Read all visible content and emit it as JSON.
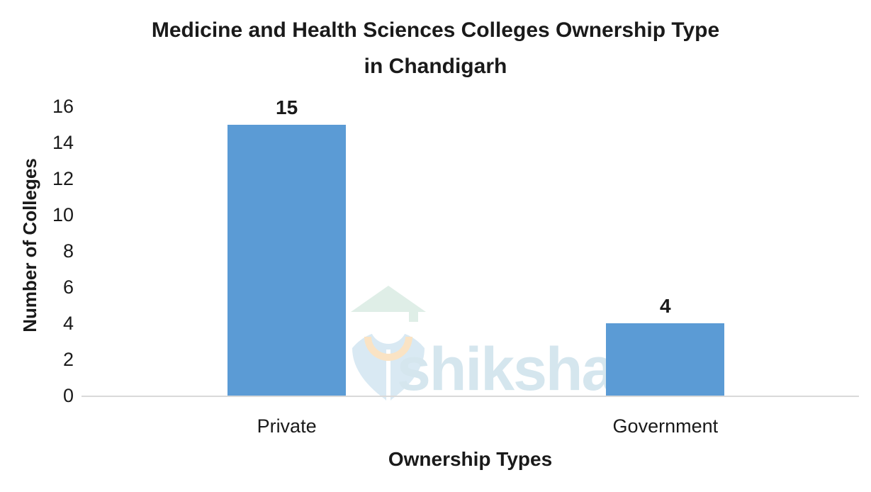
{
  "chart": {
    "title_line1": "Medicine and Health Sciences Colleges Ownership Type",
    "title_line2": "in Chandigarh",
    "ylabel": "Number of Colleges",
    "xlabel": "Ownership Types"
  },
  "watermark": {
    "text": "shiksha"
  },
  "colors": {
    "bar": "#5B9BD5",
    "axis_line": "#D9D9D9",
    "text": "#1A1A1A",
    "watermark_text": "#D5E6EE",
    "watermark_cap": "#DFEEE7",
    "watermark_body": "#D9E9F3",
    "watermark_collar": "#FAE3C4"
  },
  "chart_data": {
    "type": "bar",
    "title": "Medicine and Health Sciences Colleges Ownership Type in Chandigarh",
    "categories": [
      "Private",
      "Government"
    ],
    "values": [
      15,
      4
    ],
    "data_labels": [
      "15",
      "4"
    ],
    "xlabel": "Ownership Types",
    "ylabel": "Number of Colleges",
    "ylim": [
      0,
      16
    ],
    "yticks": [
      0,
      2,
      4,
      6,
      8,
      10,
      12,
      14,
      16
    ],
    "grid": false,
    "legend": false,
    "bar_color": "#5B9BD5",
    "series": [
      {
        "name": "Number of Colleges",
        "values": [
          15,
          4
        ]
      }
    ]
  }
}
